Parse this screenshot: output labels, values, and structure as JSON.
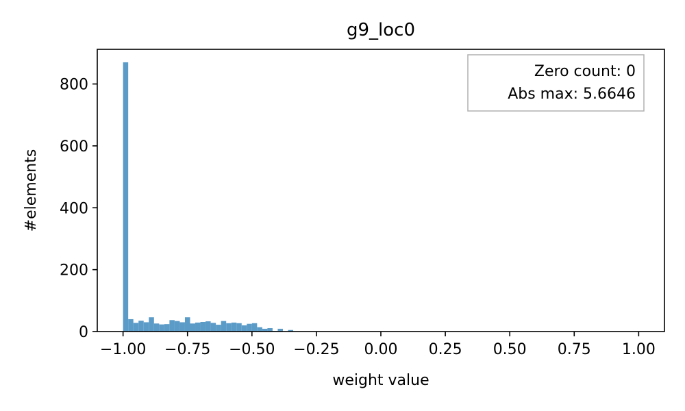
{
  "chart_data": {
    "type": "bar",
    "title": "g9_loc0",
    "xlabel": "weight value",
    "ylabel": "#elements",
    "xlim": [
      -1.1,
      1.1
    ],
    "ylim": [
      0,
      912
    ],
    "x_ticks": [
      -1.0,
      -0.75,
      -0.5,
      -0.25,
      0.0,
      0.25,
      0.5,
      0.75,
      1.0
    ],
    "x_tick_labels": [
      "−1.00",
      "−0.75",
      "−0.50",
      "−0.25",
      "0.00",
      "0.25",
      "0.50",
      "0.75",
      "1.00"
    ],
    "y_ticks": [
      0,
      200,
      400,
      600,
      800
    ],
    "y_tick_labels": [
      "0",
      "200",
      "400",
      "600",
      "800"
    ],
    "bin_width": 0.02,
    "bins": [
      {
        "x": -1.0,
        "count": 870
      },
      {
        "x": -0.98,
        "count": 40
      },
      {
        "x": -0.96,
        "count": 28
      },
      {
        "x": -0.94,
        "count": 35
      },
      {
        "x": -0.92,
        "count": 30
      },
      {
        "x": -0.9,
        "count": 46
      },
      {
        "x": -0.88,
        "count": 26
      },
      {
        "x": -0.86,
        "count": 23
      },
      {
        "x": -0.84,
        "count": 24
      },
      {
        "x": -0.82,
        "count": 37
      },
      {
        "x": -0.8,
        "count": 34
      },
      {
        "x": -0.78,
        "count": 30
      },
      {
        "x": -0.76,
        "count": 46
      },
      {
        "x": -0.74,
        "count": 26
      },
      {
        "x": -0.72,
        "count": 29
      },
      {
        "x": -0.7,
        "count": 31
      },
      {
        "x": -0.68,
        "count": 33
      },
      {
        "x": -0.66,
        "count": 28
      },
      {
        "x": -0.64,
        "count": 22
      },
      {
        "x": -0.62,
        "count": 34
      },
      {
        "x": -0.6,
        "count": 27
      },
      {
        "x": -0.58,
        "count": 29
      },
      {
        "x": -0.56,
        "count": 27
      },
      {
        "x": -0.54,
        "count": 20
      },
      {
        "x": -0.52,
        "count": 25
      },
      {
        "x": -0.5,
        "count": 27
      },
      {
        "x": -0.48,
        "count": 14
      },
      {
        "x": -0.46,
        "count": 9
      },
      {
        "x": -0.44,
        "count": 11
      },
      {
        "x": -0.42,
        "count": 2
      },
      {
        "x": -0.4,
        "count": 9
      },
      {
        "x": -0.38,
        "count": 0
      },
      {
        "x": -0.36,
        "count": 5
      }
    ],
    "bar_color": "#5b9bc8",
    "legend": {
      "placement": "top-right",
      "lines": [
        "Zero count: 0",
        "Abs max: 5.6646"
      ]
    },
    "grid": false
  }
}
